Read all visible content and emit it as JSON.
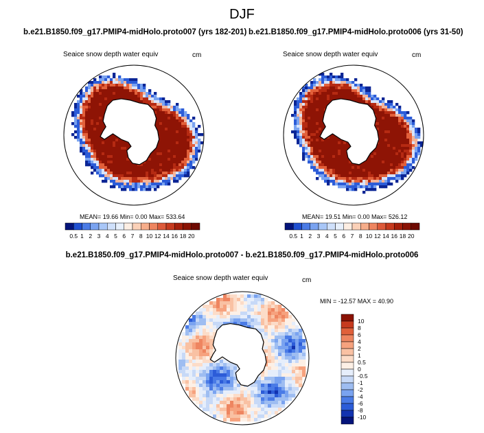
{
  "season": "DJF",
  "panels": [
    {
      "case_title": "b.e21.B1850.f09_g17.PMIP4-midHolo.proto007 (yrs 182-201)",
      "variable": "Seaice snow depth water equiv",
      "units": "cm",
      "stats": "MEAN=  19.66  Min=    0.00  Max= 533.64",
      "stat_values": {
        "mean": 19.66,
        "min": 0.0,
        "max": 533.64
      }
    },
    {
      "case_title": "b.e21.B1850.f09_g17.PMIP4-midHolo.proto006 (yrs 31-50)",
      "variable": "Seaice snow depth water equiv",
      "units": "cm",
      "stats": "MEAN=  19.51  Min=    0.00  Max= 526.12",
      "stat_values": {
        "mean": 19.51,
        "min": 0.0,
        "max": 526.12
      }
    }
  ],
  "colorbar_levels": [
    "0.5",
    "1",
    "2",
    "3",
    "4",
    "5",
    "6",
    "7",
    "8",
    "10",
    "12",
    "14",
    "16",
    "18",
    "20"
  ],
  "colorbar_colors": [
    "#04137a",
    "#1f4fd1",
    "#4a7be6",
    "#7aa3f0",
    "#a8c6f7",
    "#cfe0fb",
    "#e8f0fc",
    "#fdeee3",
    "#fbd1b8",
    "#f6ad8a",
    "#ee8560",
    "#dd5a3a",
    "#c63a1e",
    "#a51f0a",
    "#8a1204",
    "#6e0a02"
  ],
  "diff": {
    "title": "b.e21.B1850.f09_g17.PMIP4-midHolo.proto007 - b.e21.B1850.f09_g17.PMIP4-midHolo.proto006",
    "variable": "Seaice snow depth water equiv",
    "units": "cm",
    "stats": "MIN = -12.57 MAX =  40.90",
    "stat_values": {
      "min": -12.57,
      "max": 40.9
    },
    "colorbar_levels": [
      "10",
      "8",
      "6",
      "4",
      "2",
      "1",
      "0.5",
      "0",
      "-0.5",
      "-1",
      "-2",
      "-4",
      "-6",
      "-8",
      "-10"
    ],
    "colorbar_colors": [
      "#8a1204",
      "#c63a1e",
      "#e0603a",
      "#ee8560",
      "#f6a27e",
      "#f9c1a3",
      "#fcdcc8",
      "#fdf0e6",
      "#e6eefb",
      "#c7d9f7",
      "#9ebdf1",
      "#7aa3f0",
      "#4a7be6",
      "#2c5cd8",
      "#1233b0",
      "#04137a"
    ]
  },
  "map_colors": {
    "land": "#ffffff",
    "coast": "#000000",
    "ocean": "#ffffff",
    "deep_red": "#8e1405",
    "red": "#b52a12",
    "orange": "#e2603a",
    "blue": "#2c5cd8",
    "dark_blue": "#0b2595"
  }
}
